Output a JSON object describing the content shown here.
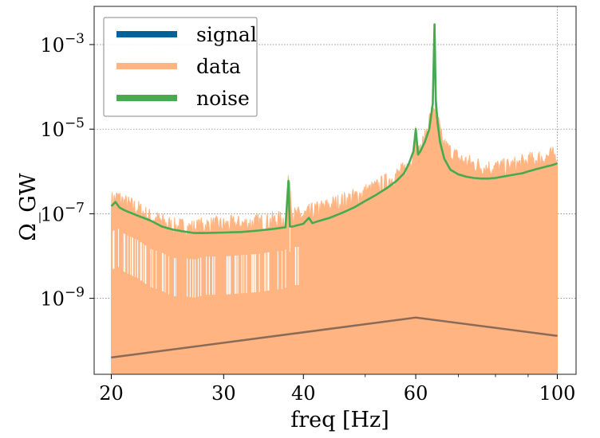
{
  "chart_data": {
    "type": "line",
    "title": "",
    "xlabel": "freq [Hz]",
    "ylabel": "Ω_GW",
    "xscale": "log",
    "yscale": "log",
    "xlim": [
      18.8,
      107
    ],
    "ylim": [
      1.6e-11,
      0.008
    ],
    "grid": true,
    "grid_style": "dotted",
    "legend_position": "top-left",
    "x_ticks": [
      {
        "value": 20,
        "label": "20"
      },
      {
        "value": 30,
        "label": "30"
      },
      {
        "value": 40,
        "label": "40"
      },
      {
        "value": 60,
        "label": "60"
      },
      {
        "value": 100,
        "label": "100"
      }
    ],
    "y_ticks": [
      {
        "value": 0.001,
        "base": "10",
        "exp": "−3"
      },
      {
        "value": 1e-05,
        "base": "10",
        "exp": "−5"
      },
      {
        "value": 1e-07,
        "base": "10",
        "exp": "−7"
      },
      {
        "value": 1e-09,
        "base": "10",
        "exp": "−9"
      }
    ],
    "colors": {
      "signal": "#00619b",
      "data": "#ffb482",
      "noise": "#46aa4e",
      "overlap": "#8b6a56"
    },
    "series": [
      {
        "name": "signal",
        "x": [
          20,
          60,
          100
        ],
        "values": [
          4e-11,
          3.5e-10,
          1.3e-10
        ]
      },
      {
        "name": "data",
        "x": [
          20,
          20.5,
          21,
          22,
          23,
          24,
          25,
          26,
          27,
          28,
          30,
          32,
          34,
          36,
          37.5,
          38,
          38.5,
          40,
          41,
          42,
          44,
          46,
          48,
          50,
          52,
          54,
          56,
          58,
          59,
          60,
          60.5,
          61,
          62,
          63,
          64,
          64.5,
          65,
          66,
          68,
          70,
          72,
          74,
          76,
          78,
          80,
          82,
          84,
          86,
          88,
          90,
          92,
          94,
          96,
          98,
          100
        ],
        "values": [
          2.5e-07,
          3e-07,
          2.2e-07,
          1.6e-07,
          1e-07,
          8e-08,
          6e-08,
          6e-08,
          5.5e-08,
          6.5e-08,
          6.5e-08,
          7e-08,
          7.5e-08,
          8.5e-08,
          9e-08,
          1.1e-06,
          1.1e-07,
          1.1e-07,
          1.3e-07,
          1.5e-07,
          1.9e-07,
          2.4e-07,
          3e-07,
          4e-07,
          5e-07,
          7e-07,
          1e-06,
          1.4e-06,
          2e-06,
          1.3e-05,
          3e-06,
          4e-06,
          7e-06,
          2e-05,
          4e-05,
          5e-05,
          2e-05,
          6e-06,
          3.5e-06,
          2.5e-06,
          2e-06,
          1.8e-06,
          1.6e-06,
          1.5e-06,
          1.5e-06,
          1.5e-06,
          1.6e-06,
          1.7e-06,
          1.9e-06,
          2.1e-06,
          2.3e-06,
          2.5e-06,
          2.7e-06,
          2.8e-06,
          2.8e-06
        ]
      },
      {
        "name": "noise",
        "x": [
          20,
          20.3,
          20.6,
          21,
          22,
          23,
          24,
          25,
          26,
          27,
          28,
          30,
          32,
          34,
          36,
          37.5,
          37.9,
          38.1,
          38.5,
          40,
          40.8,
          41.3,
          42,
          44,
          46,
          48,
          50,
          52,
          54,
          56,
          57.5,
          58.5,
          59.5,
          60,
          60.5,
          61,
          62,
          63,
          63.8,
          64.2,
          64.5,
          64.9,
          65.5,
          66.5,
          68,
          70,
          72,
          74,
          76,
          78,
          80,
          82,
          84,
          86,
          88,
          90,
          92,
          94,
          96,
          98,
          100
        ],
        "values": [
          1.5e-07,
          1.9e-07,
          1.4e-07,
          1.2e-07,
          9e-08,
          7e-08,
          5e-08,
          4.2e-08,
          3.8e-08,
          3.5e-08,
          3.5e-08,
          3.6e-08,
          3.7e-08,
          4e-08,
          4.4e-08,
          4.8e-08,
          6e-07,
          5e-08,
          5e-08,
          5.8e-08,
          8e-08,
          6e-08,
          6.5e-08,
          8e-08,
          1.05e-07,
          1.4e-07,
          2e-07,
          2.8e-07,
          4e-07,
          6e-07,
          9e-07,
          1.5e-06,
          3e-06,
          1e-05,
          2.5e-06,
          3e-06,
          5e-06,
          1e-05,
          4e-05,
          0.003,
          5e-05,
          1.5e-05,
          5e-06,
          2e-06,
          1.1e-06,
          8.5e-07,
          7.5e-07,
          7e-07,
          6.8e-07,
          6.8e-07,
          7e-07,
          7.5e-07,
          8e-07,
          8.5e-07,
          9e-07,
          1e-06,
          1.1e-06,
          1.2e-06,
          1.3e-06,
          1.4e-06,
          1.55e-06
        ]
      }
    ]
  }
}
